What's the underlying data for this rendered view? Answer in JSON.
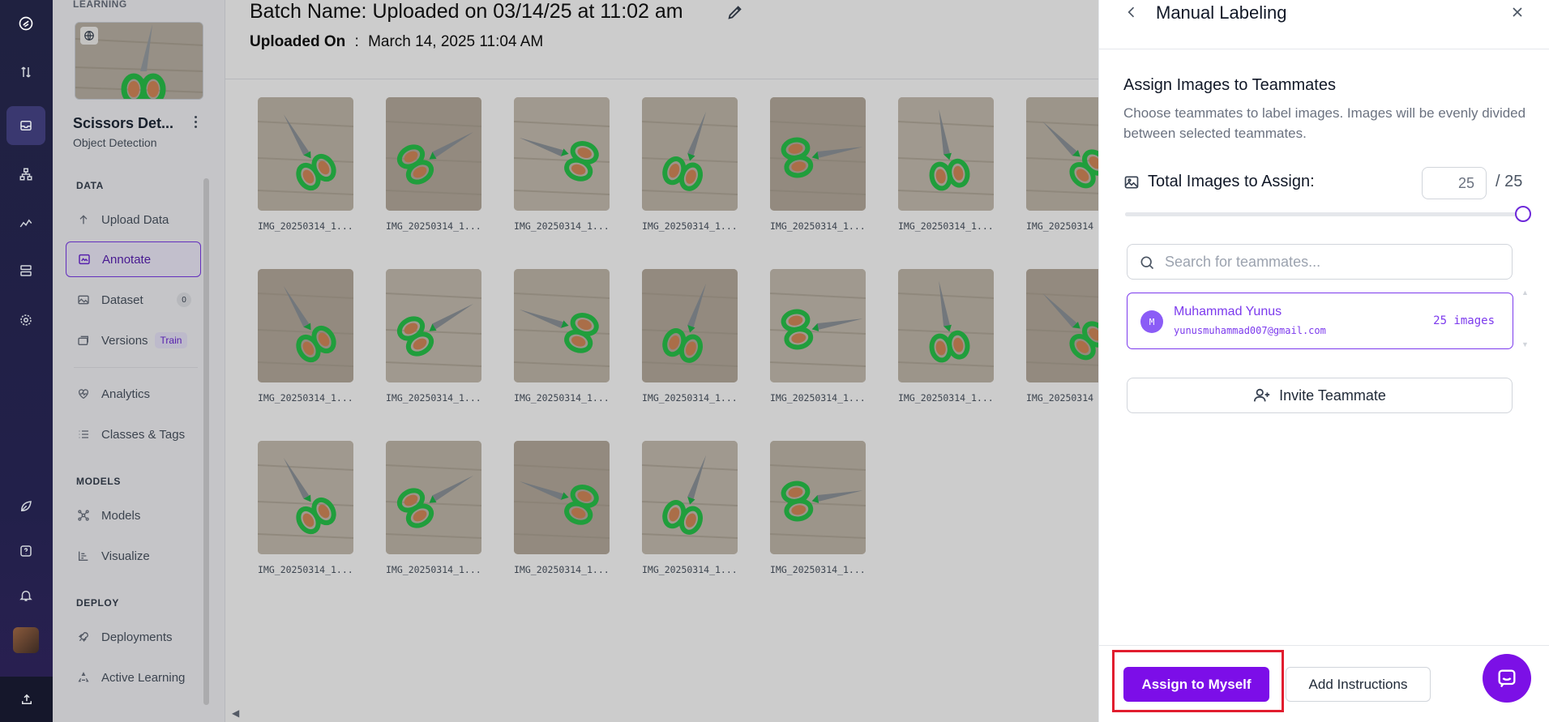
{
  "rail": {
    "items": [
      {
        "icon": "logo-icon"
      },
      {
        "icon": "swap-icon"
      },
      {
        "icon": "inbox-icon",
        "active": true
      },
      {
        "icon": "workflow-icon"
      },
      {
        "icon": "chart-icon"
      },
      {
        "icon": "server-icon"
      },
      {
        "icon": "settings-icon"
      },
      {
        "icon": "leaf-icon"
      },
      {
        "icon": "help-icon"
      },
      {
        "icon": "bell-icon"
      },
      {
        "icon": "avatar"
      },
      {
        "icon": "upload-icon"
      }
    ]
  },
  "sidebar": {
    "top_label": "LEARNING",
    "project_name": "Scissors Det...",
    "project_type": "Object Detection",
    "sections": {
      "data": "DATA",
      "models": "MODELS",
      "deploy": "DEPLOY"
    },
    "items": {
      "upload": "Upload Data",
      "annotate": "Annotate",
      "dataset": "Dataset",
      "dataset_count": "0",
      "versions": "Versions",
      "versions_badge": "Train",
      "analytics": "Analytics",
      "classes": "Classes & Tags",
      "models": "Models",
      "visualize": "Visualize",
      "deployments": "Deployments",
      "active_learning": "Active Learning"
    }
  },
  "main": {
    "batch_label": "Batch Name:",
    "batch_value": "Uploaded on 03/14/25 at 11:02 am",
    "uploaded_label": "Uploaded On",
    "uploaded_sep": ":",
    "uploaded_value": "March 14, 2025 11:04 AM",
    "images": [
      {
        "name": "IMG_20250314_1..."
      },
      {
        "name": "IMG_20250314_1..."
      },
      {
        "name": "IMG_20250314_1..."
      },
      {
        "name": "IMG_20250314_1..."
      },
      {
        "name": "IMG_20250314_1..."
      },
      {
        "name": "IMG_20250314_1..."
      },
      {
        "name": "IMG_20250314"
      },
      {
        "name": "IMG_20250314_1..."
      },
      {
        "name": "IMG_20250314_1..."
      },
      {
        "name": "IMG_20250314_1..."
      },
      {
        "name": "IMG_20250314_1..."
      },
      {
        "name": "IMG_20250314_1..."
      },
      {
        "name": "IMG_20250314_1..."
      },
      {
        "name": "IMG_20250314"
      },
      {
        "name": "IMG_20250314_1..."
      },
      {
        "name": "IMG_20250314_1..."
      },
      {
        "name": "IMG_20250314_1..."
      },
      {
        "name": "IMG_20250314_1..."
      },
      {
        "name": "IMG_20250314_1..."
      }
    ]
  },
  "panel": {
    "title": "Manual Labeling",
    "subtitle": "Assign Images to Teammates",
    "description": "Choose teammates to label images. Images will be evenly divided between selected teammates.",
    "total_label": "Total Images to Assign:",
    "total_value": "25",
    "total_of": "/ 25",
    "slider_fraction": 1.0,
    "search_placeholder": "Search for teammates...",
    "teammate": {
      "initial": "M",
      "name": "Muhammad Yunus",
      "email": "yunusmuhammad007@gmail.com",
      "count": "25 images"
    },
    "invite_label": "Invite Teammate",
    "assign_label": "Assign to Myself",
    "instructions_label": "Add Instructions"
  },
  "colors": {
    "accent": "#7c0ee8",
    "highlight": "#e11d2e",
    "rail_bg": "#1f2140"
  }
}
